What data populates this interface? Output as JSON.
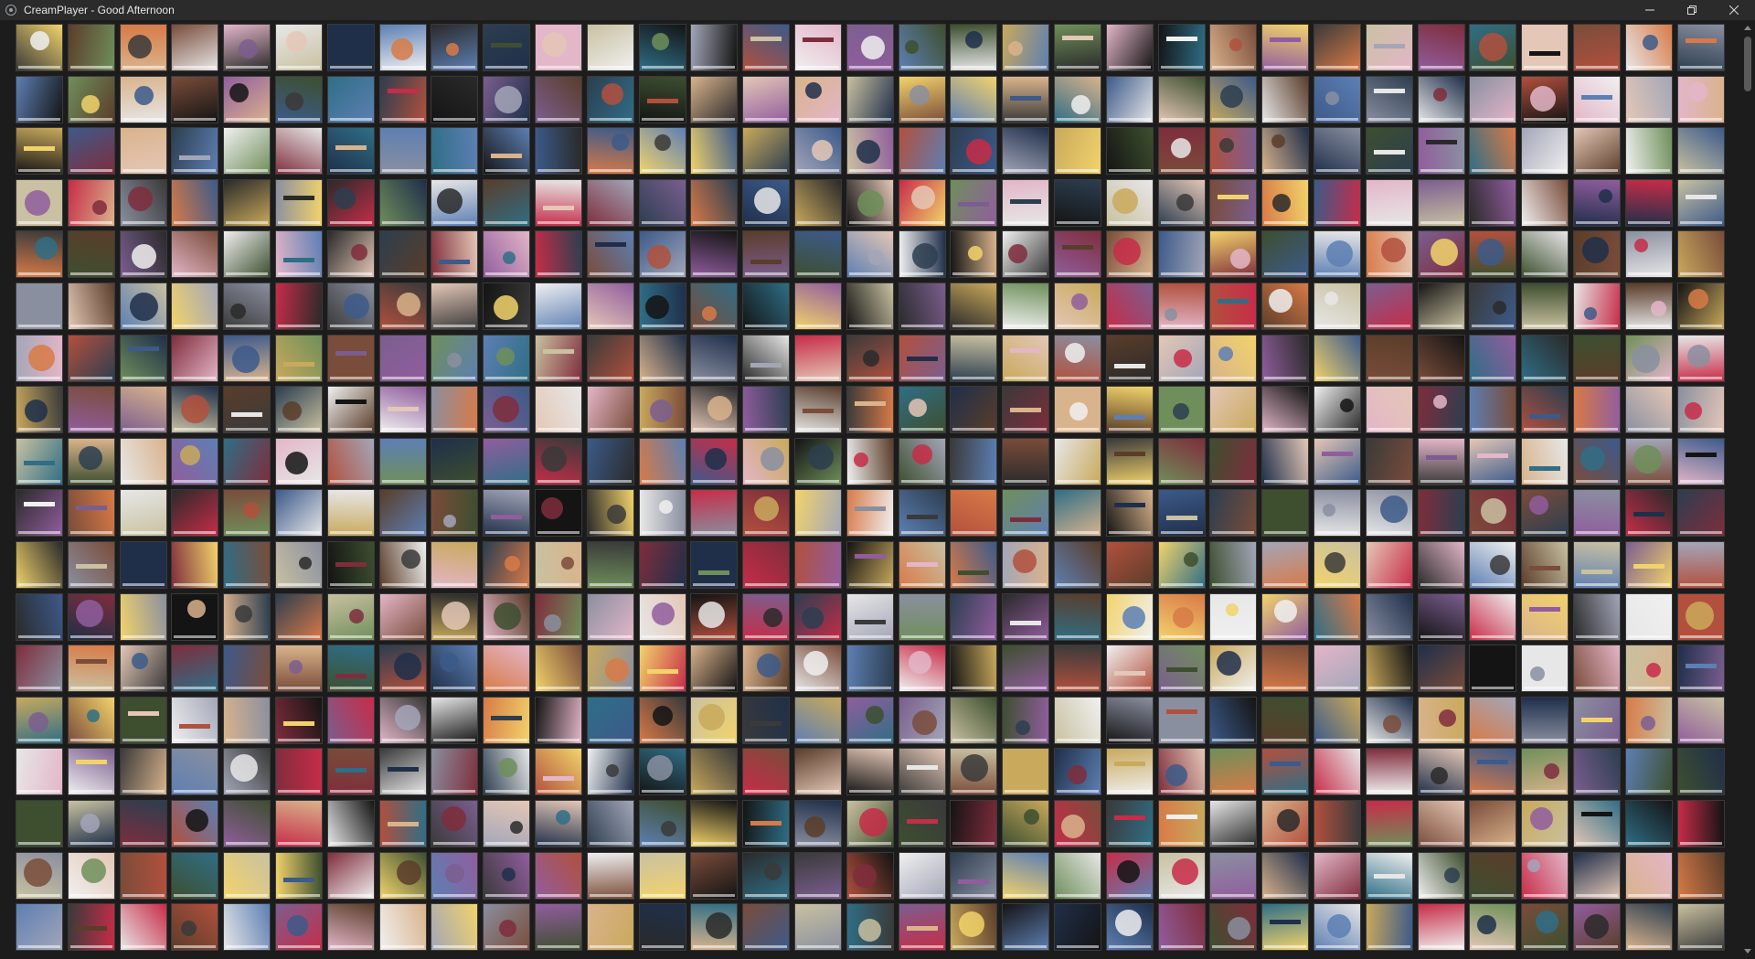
{
  "window": {
    "title": "CreamPlayer - Good Afternoon"
  },
  "icons": {
    "app": "app-icon",
    "minimize": "minimize-icon",
    "maximize": "restore-icon",
    "close": "close-icon",
    "scroll_up": "chevron-up-icon",
    "scroll_down": "chevron-down-icon"
  },
  "grid": {
    "columns": 33,
    "rows": 18,
    "palette": [
      "#3c5a8a",
      "#7a4c3a",
      "#d9b38c",
      "#2a2a2a",
      "#e7e7e7",
      "#c72c48",
      "#5d7fb3",
      "#7b5e8f",
      "#c9a95c",
      "#1f2f4a",
      "#b2503d",
      "#6f8f5a",
      "#e3b6c8",
      "#3a3a3a",
      "#8a8fa0",
      "#f2d36b",
      "#5a3d2a",
      "#2f6e86",
      "#d87a47",
      "#a3a6b8",
      "#141414",
      "#e4c7b6",
      "#7f2d3c",
      "#3d4f2f",
      "#f0f0f0",
      "#915d9e",
      "#2c3e50",
      "#c9c1a1"
    ]
  }
}
